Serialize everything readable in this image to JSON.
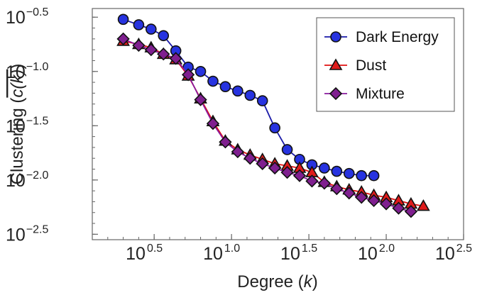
{
  "chart_data": {
    "type": "line",
    "x_scale": "log10",
    "y_scale": "log10",
    "xlabel": "Degree",
    "xlabel_var": "k",
    "ylabel": "Clustering",
    "ylabel_var": "c(k)",
    "xlim_log10": [
      0.1,
      2.5
    ],
    "ylim_log10": [
      -2.55,
      -0.42
    ],
    "x_ticks": [
      {
        "exp": 0.5,
        "base": "10",
        "label": "0.5"
      },
      {
        "exp": 1.0,
        "base": "10",
        "label": "1.0"
      },
      {
        "exp": 1.5,
        "base": "10",
        "label": "1.5"
      },
      {
        "exp": 2.0,
        "base": "10",
        "label": "2.0"
      },
      {
        "exp": 2.5,
        "base": "10",
        "label": "2.5"
      }
    ],
    "y_ticks": [
      {
        "exp": -0.5,
        "base": "10",
        "label": "−0.5"
      },
      {
        "exp": -1.0,
        "base": "10",
        "label": "−1.0"
      },
      {
        "exp": -1.5,
        "base": "10",
        "label": "−1.5"
      },
      {
        "exp": -2.0,
        "base": "10",
        "label": "−2.0"
      },
      {
        "exp": -2.5,
        "base": "10",
        "label": "−2.5"
      }
    ],
    "legend_position": "top-right",
    "series": [
      {
        "name": "Dark Energy",
        "marker": "circle",
        "line_color": "#1a1aa8",
        "fill": "#2733e0",
        "points": [
          [
            0.3,
            -0.52
          ],
          [
            0.4,
            -0.57
          ],
          [
            0.48,
            -0.61
          ],
          [
            0.56,
            -0.67
          ],
          [
            0.64,
            -0.81
          ],
          [
            0.72,
            -0.96
          ],
          [
            0.8,
            -1.0
          ],
          [
            0.88,
            -1.09
          ],
          [
            0.96,
            -1.14
          ],
          [
            1.04,
            -1.18
          ],
          [
            1.12,
            -1.22
          ],
          [
            1.2,
            -1.27
          ],
          [
            1.28,
            -1.52
          ],
          [
            1.36,
            -1.72
          ],
          [
            1.44,
            -1.81
          ],
          [
            1.52,
            -1.86
          ],
          [
            1.6,
            -1.89
          ],
          [
            1.68,
            -1.92
          ],
          [
            1.76,
            -1.94
          ],
          [
            1.84,
            -1.96
          ],
          [
            1.92,
            -1.96
          ]
        ]
      },
      {
        "name": "Dust",
        "marker": "triangle",
        "line_color": "#e01010",
        "fill": "#e01b1b",
        "points": [
          [
            0.3,
            -0.72
          ],
          [
            0.4,
            -0.75
          ],
          [
            0.48,
            -0.78
          ],
          [
            0.56,
            -0.84
          ],
          [
            0.64,
            -0.89
          ],
          [
            0.72,
            -1.04
          ],
          [
            0.8,
            -1.25
          ],
          [
            0.88,
            -1.46
          ],
          [
            0.96,
            -1.64
          ],
          [
            1.04,
            -1.72
          ],
          [
            1.12,
            -1.77
          ],
          [
            1.2,
            -1.81
          ],
          [
            1.28,
            -1.85
          ],
          [
            1.36,
            -1.87
          ],
          [
            1.44,
            -1.89
          ],
          [
            1.52,
            -1.93
          ],
          [
            1.6,
            -2.02
          ],
          [
            1.68,
            -2.06
          ],
          [
            1.76,
            -2.09
          ],
          [
            1.84,
            -2.11
          ],
          [
            1.92,
            -2.14
          ],
          [
            2.0,
            -2.16
          ],
          [
            2.08,
            -2.19
          ],
          [
            2.16,
            -2.22
          ],
          [
            2.24,
            -2.24
          ]
        ]
      },
      {
        "name": "Mixture",
        "marker": "diamond",
        "line_color": "#8a1a9e",
        "fill": "#7f1f8f",
        "points": [
          [
            0.3,
            -0.7
          ],
          [
            0.4,
            -0.76
          ],
          [
            0.48,
            -0.8
          ],
          [
            0.56,
            -0.84
          ],
          [
            0.64,
            -0.88
          ],
          [
            0.72,
            -1.03
          ],
          [
            0.8,
            -1.26
          ],
          [
            0.88,
            -1.48
          ],
          [
            0.96,
            -1.65
          ],
          [
            1.04,
            -1.74
          ],
          [
            1.12,
            -1.8
          ],
          [
            1.2,
            -1.85
          ],
          [
            1.28,
            -1.89
          ],
          [
            1.36,
            -1.93
          ],
          [
            1.44,
            -1.96
          ],
          [
            1.52,
            -2.01
          ],
          [
            1.6,
            -2.03
          ],
          [
            1.68,
            -2.08
          ],
          [
            1.76,
            -2.12
          ],
          [
            1.84,
            -2.16
          ],
          [
            1.92,
            -2.19
          ],
          [
            2.0,
            -2.22
          ],
          [
            2.08,
            -2.26
          ],
          [
            2.16,
            -2.29
          ]
        ]
      }
    ]
  }
}
